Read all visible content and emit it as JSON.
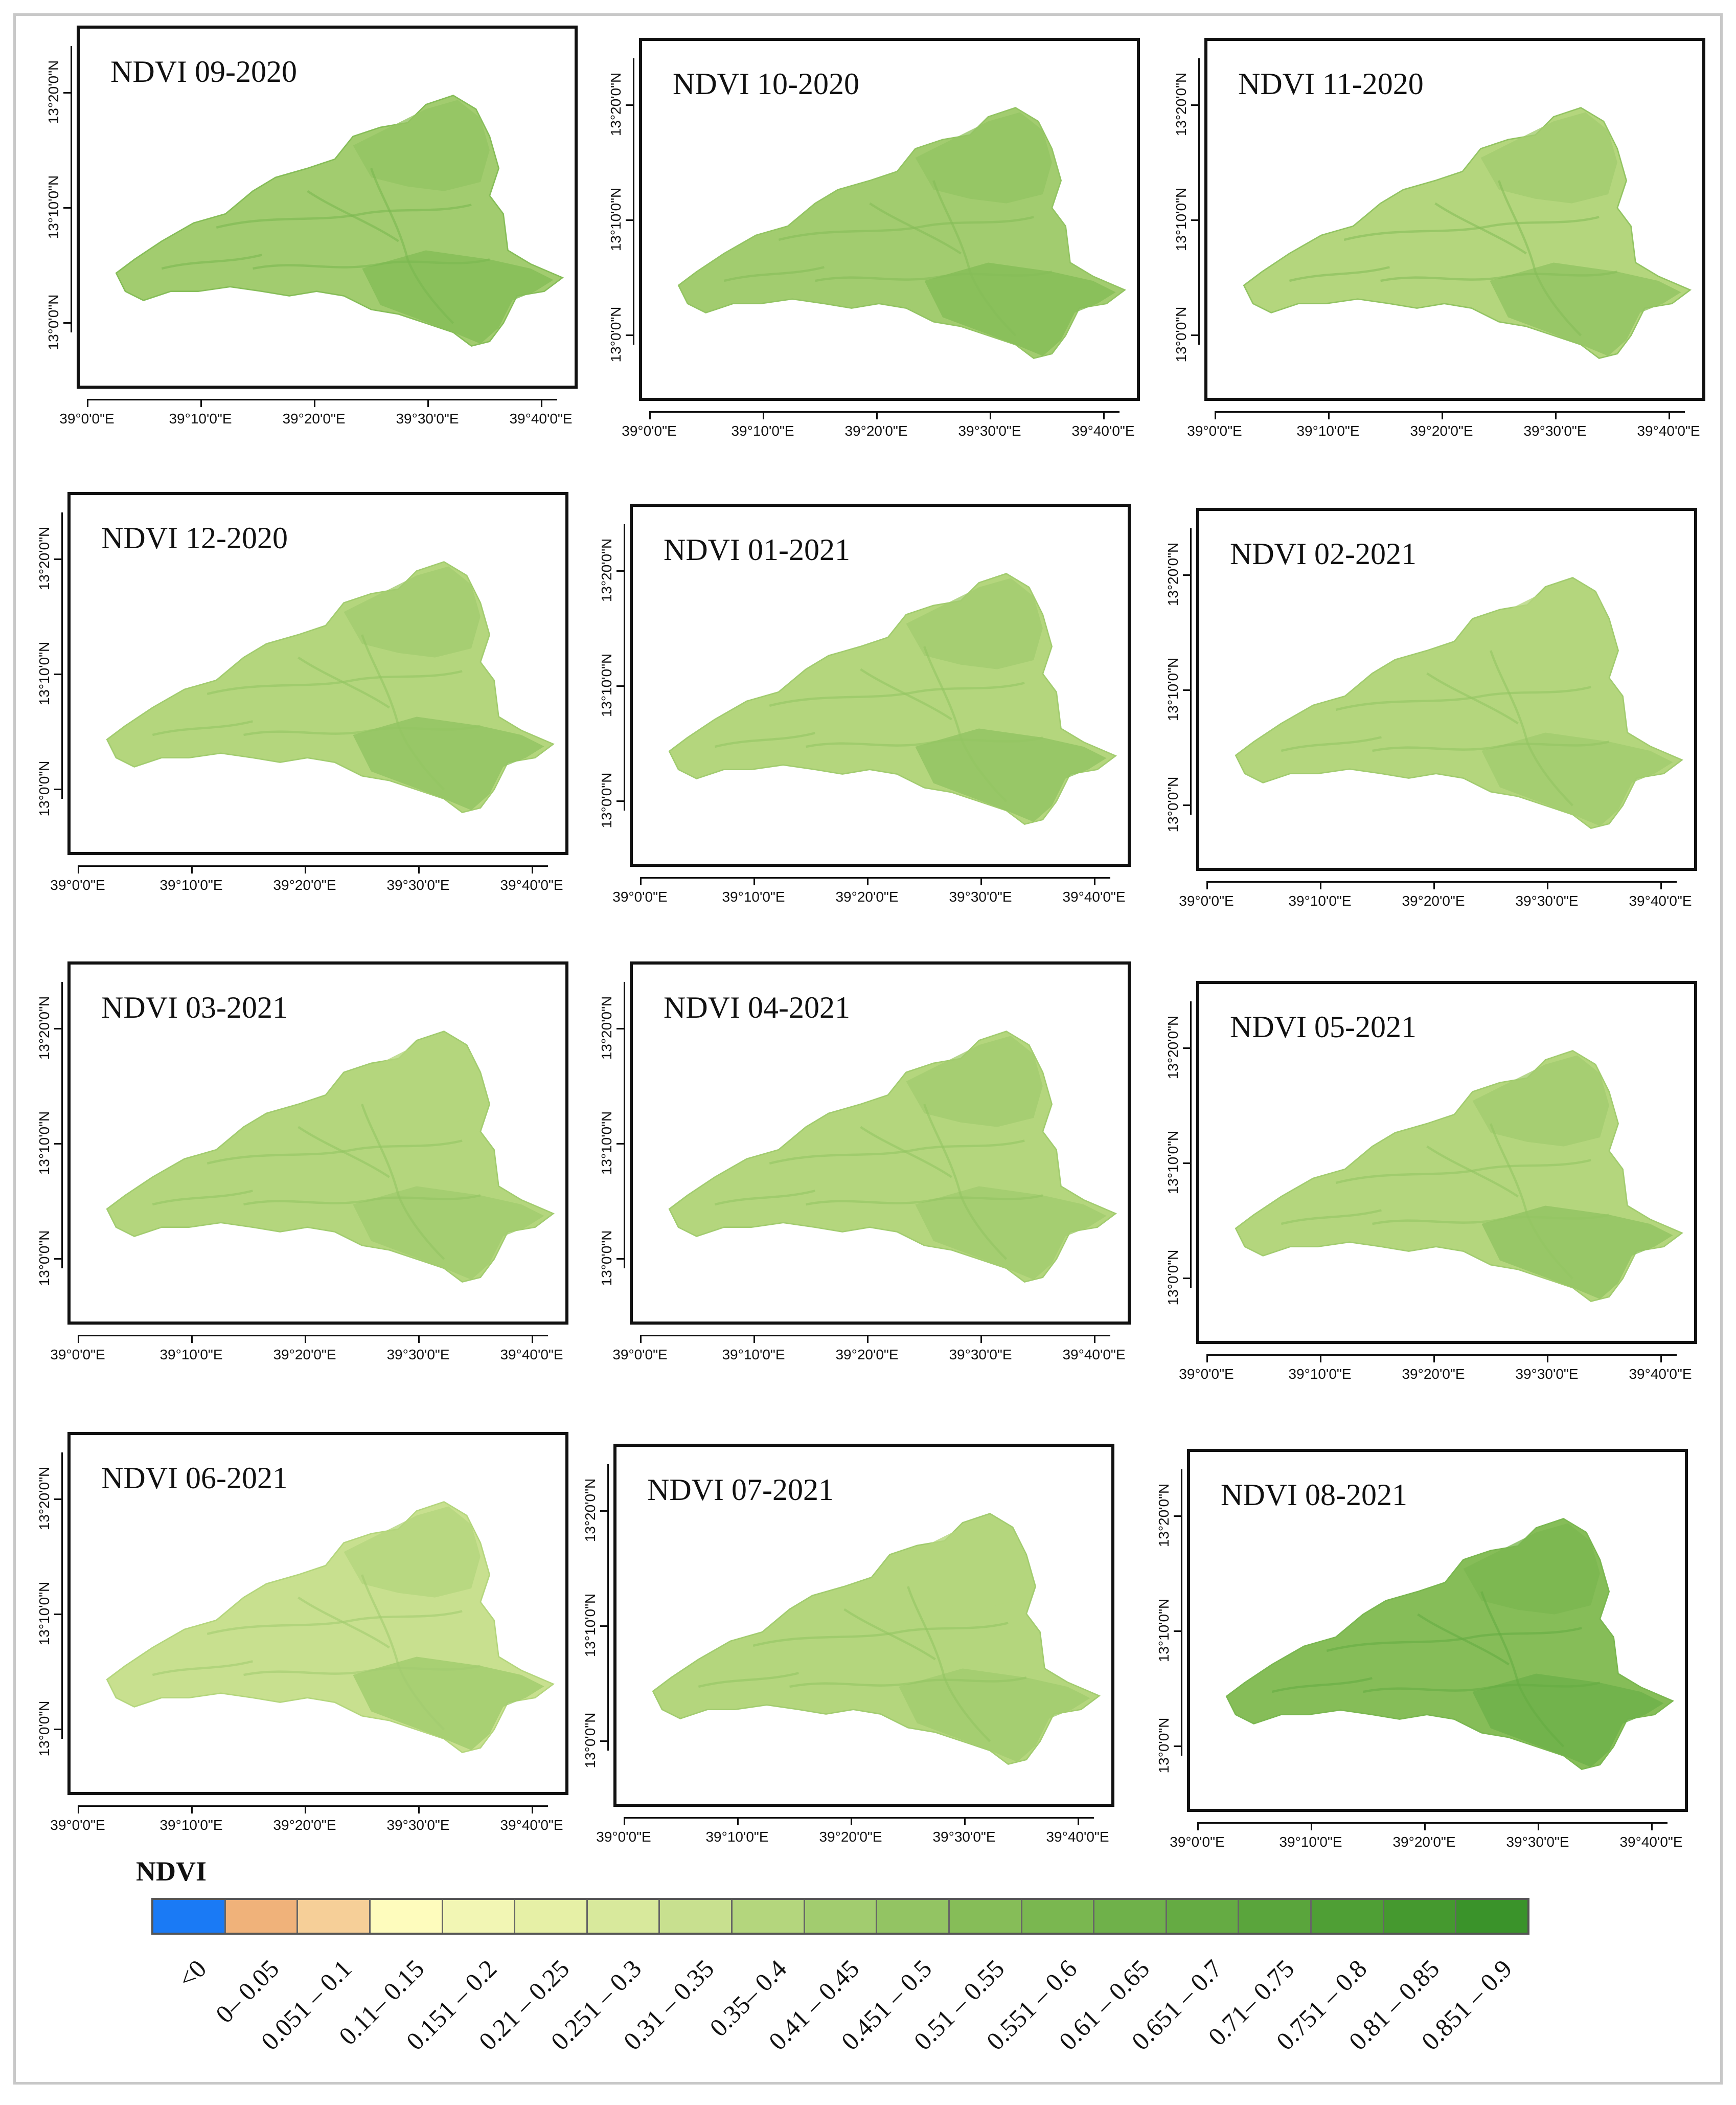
{
  "maps": [
    {
      "title": "NDVI 09-2020",
      "tone": 0.42
    },
    {
      "title": "NDVI 10-2020",
      "tone": 0.4
    },
    {
      "title": "NDVI 11-2020",
      "tone": 0.36
    },
    {
      "title": "NDVI 12-2020",
      "tone": 0.34
    },
    {
      "title": "NDVI 01-2021",
      "tone": 0.33
    },
    {
      "title": "NDVI 02-2021",
      "tone": 0.3
    },
    {
      "title": "NDVI 03-2021",
      "tone": 0.3
    },
    {
      "title": "NDVI 04-2021",
      "tone": 0.31
    },
    {
      "title": "NDVI 05-2021",
      "tone": 0.32
    },
    {
      "title": "NDVI 06-2021",
      "tone": 0.28
    },
    {
      "title": "NDVI 07-2021",
      "tone": 0.3
    },
    {
      "title": "NDVI 08-2021",
      "tone": 0.55
    }
  ],
  "axes": {
    "lat_labels": [
      "13°20'0\"N",
      "13°10'0\"N",
      "13°0'0\"N"
    ],
    "lon_labels": [
      "39°0'0\"E",
      "39°10'0\"E",
      "39°20'0\"E",
      "39°30'0\"E",
      "39°40'0\"E"
    ]
  },
  "legend": {
    "title": "NDVI",
    "classes": [
      {
        "label": "<0",
        "color": "#1a7af5"
      },
      {
        "label": "0– 0.05",
        "color": "#f0b27a"
      },
      {
        "label": "0.051 – 0.1",
        "color": "#f6cf98"
      },
      {
        "label": "0.11– 0.15",
        "color": "#fefcbd"
      },
      {
        "label": "0.151 – 0.2",
        "color": "#f2f6b4"
      },
      {
        "label": "0.21 – 0.25",
        "color": "#e6f0a6"
      },
      {
        "label": "0.251 – 0.3",
        "color": "#d8e99c"
      },
      {
        "label": "0.31 – 0.35",
        "color": "#c8e08f"
      },
      {
        "label": "0.35– 0.4",
        "color": "#b4d67d"
      },
      {
        "label": "0.41 – 0.45",
        "color": "#a2cc6f"
      },
      {
        "label": "0.451 – 0.5",
        "color": "#93c463"
      },
      {
        "label": "0.51 – 0.55",
        "color": "#86bd58"
      },
      {
        "label": "0.551 – 0.6",
        "color": "#7ab750"
      },
      {
        "label": "0.61 – 0.65",
        "color": "#6fb14a"
      },
      {
        "label": "0.651 – 0.7",
        "color": "#65ab43"
      },
      {
        "label": "0.71– 0.75",
        "color": "#5aa53c"
      },
      {
        "label": "0.751 – 0.8",
        "color": "#4f9f35"
      },
      {
        "label": "0.81 – 0.85",
        "color": "#45992f"
      },
      {
        "label": "0.851 – 0.9",
        "color": "#3a932a"
      }
    ]
  }
}
